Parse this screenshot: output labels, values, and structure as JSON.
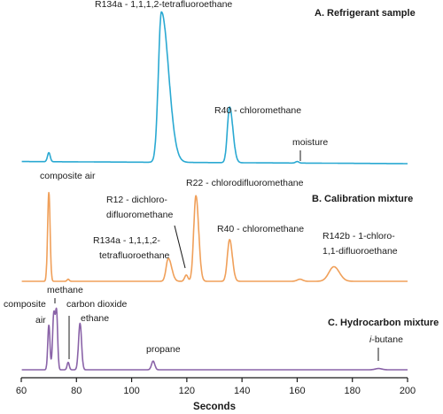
{
  "chart_data": {
    "type": "line",
    "xlabel": "Seconds",
    "xlim": [
      60,
      200
    ],
    "xticks": [
      60,
      80,
      100,
      120,
      140,
      160,
      180,
      200
    ],
    "panels": [
      {
        "title": "A. Refrigerant sample",
        "color": "#2aa9d2",
        "baseline": 0.02,
        "slope": 0.0001,
        "peaks": [
          {
            "x": 70,
            "height": 0.06,
            "width": 0.5
          },
          {
            "x": 110.8,
            "height": 1.0,
            "width": 1.1,
            "tail": 2.6
          },
          {
            "x": 135.5,
            "height": 0.37,
            "width": 0.8,
            "tail": 1.2
          },
          {
            "x": 160,
            "height": 0.01,
            "width": 0.6
          }
        ],
        "labels": [
          {
            "text": "R134a - 1,1,1,2-tetrafluoroethane",
            "x": 110.8,
            "y": 1.03
          },
          {
            "text": "R40 - chloromethane",
            "x": 135.5,
            "y": 0.4
          },
          {
            "text": "moisture",
            "x": 161,
            "y": 0.12
          }
        ]
      },
      {
        "title": "B. Calibration mixture",
        "color": "#f0a05a",
        "baseline": 0.0,
        "slope": 0.0,
        "peaks": [
          {
            "x": 70,
            "height": 0.85,
            "width": 0.45
          },
          {
            "x": 77,
            "height": 0.02,
            "width": 0.4
          },
          {
            "x": 113.3,
            "height": 0.22,
            "width": 0.8,
            "tail": 1.2
          },
          {
            "x": 119.8,
            "height": 0.06,
            "width": 0.6
          },
          {
            "x": 123.3,
            "height": 0.82,
            "width": 0.8,
            "tail": 1.0
          },
          {
            "x": 135.5,
            "height": 0.4,
            "width": 0.8,
            "tail": 1.0
          },
          {
            "x": 161,
            "height": 0.02,
            "width": 1.0
          },
          {
            "x": 173.3,
            "height": 0.14,
            "width": 1.8,
            "tail": 2.0
          }
        ],
        "labels": [
          {
            "text": "composite air",
            "x": 70,
            "y": 0.88
          },
          {
            "text": "R12 - dichloro-",
            "x": 115,
            "y": 0.72
          },
          {
            "text": "difluoromethane",
            "x": 115,
            "y": 0.6
          },
          {
            "text": "R22 - chlorodifluoromethane",
            "x": 123.3,
            "y": 0.86
          },
          {
            "text": "R134a - 1,1,1,2-",
            "x": 108,
            "y": 0.38
          },
          {
            "text": "tetrafluoroethane",
            "x": 108,
            "y": 0.26
          },
          {
            "text": "R40 - chloromethane",
            "x": 135.5,
            "y": 0.45
          },
          {
            "text": "R142b - 1-chloro-",
            "x": 173,
            "y": 0.37
          },
          {
            "text": "1,1-difluoroethane",
            "x": 173,
            "y": 0.25
          }
        ]
      },
      {
        "title": "C. Hydrocarbon mixture",
        "color": "#8a63a8",
        "baseline": 0.0,
        "slope": 0.0,
        "peaks": [
          {
            "x": 70,
            "height": 0.72,
            "width": 0.4
          },
          {
            "x": 71.8,
            "height": 0.9,
            "width": 0.45
          },
          {
            "x": 72.8,
            "height": 0.9,
            "width": 0.4
          },
          {
            "x": 77,
            "height": 0.12,
            "width": 0.4
          },
          {
            "x": 81.3,
            "height": 0.75,
            "width": 0.55
          },
          {
            "x": 107.8,
            "height": 0.14,
            "width": 0.6
          },
          {
            "x": 189.5,
            "height": 0.02,
            "width": 1.2
          }
        ],
        "labels": [
          {
            "text": "composite",
            "x": 67,
            "y": 0.88
          },
          {
            "text": "air",
            "x": 67,
            "y": 0.68
          },
          {
            "text": "methane",
            "x": 74,
            "y": 1.05
          },
          {
            "text": "carbon dioxide",
            "x": 83,
            "y": 0.87
          },
          {
            "text": "ethane",
            "x": 86,
            "y": 0.68
          },
          {
            "text": "propane",
            "x": 109,
            "y": 0.26
          },
          {
            "text": "i-butane",
            "x": 189,
            "y": 0.34
          }
        ]
      }
    ]
  }
}
